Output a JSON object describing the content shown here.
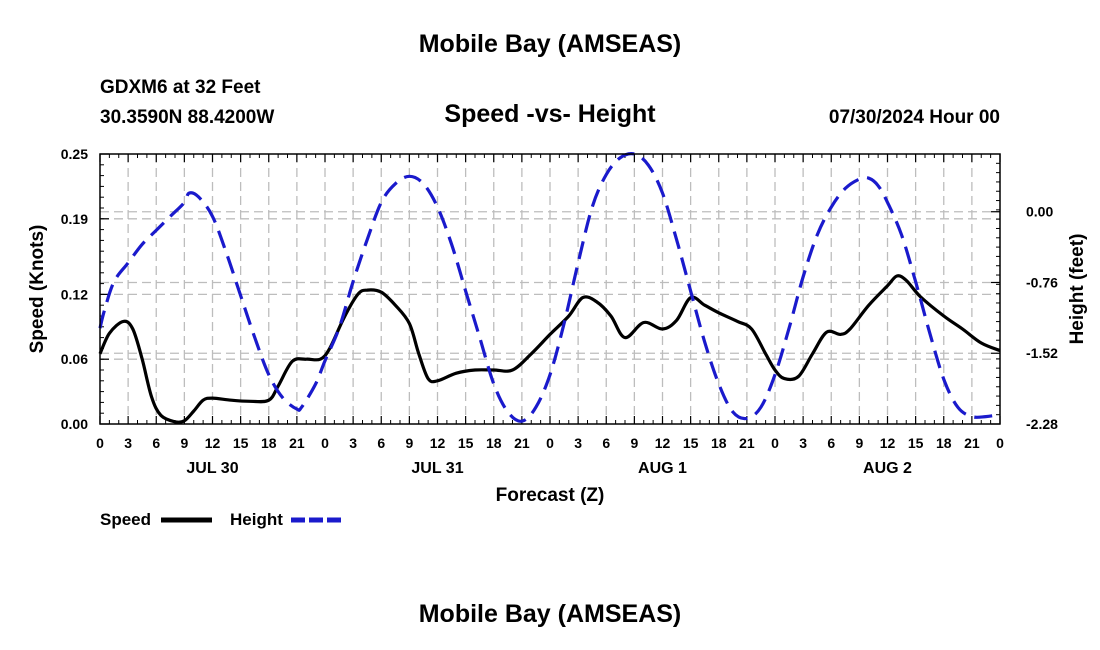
{
  "header": {
    "title": "Mobile Bay (AMSEAS)",
    "station": "GDXM6 at 32 Feet",
    "coords": "30.3590N  88.4200W",
    "chart_title": "Speed -vs- Height",
    "date": "07/30/2024 Hour 00"
  },
  "footer": {
    "title": "Mobile Bay (AMSEAS)"
  },
  "colors": {
    "speed": "#000000",
    "height": "#1a1acc",
    "grid": "#bdbdbd"
  },
  "chart_data": {
    "type": "line",
    "title": "Speed -vs- Height",
    "xlabel": "Forecast (Z)",
    "ylabel": "Speed (Knots)",
    "y2label": "Height (feet)",
    "xlim": [
      0,
      96
    ],
    "ylim": [
      0,
      0.25
    ],
    "y2lim": [
      -2.28,
      0.62
    ],
    "x_ticks": [
      0,
      3,
      6,
      9,
      12,
      15,
      18,
      21,
      24,
      27,
      30,
      33,
      36,
      39,
      42,
      45,
      48,
      51,
      54,
      57,
      60,
      63,
      66,
      69,
      72,
      75,
      78,
      81,
      84,
      87,
      90,
      93,
      96
    ],
    "x_tick_labels": [
      "0",
      "3",
      "6",
      "9",
      "12",
      "15",
      "18",
      "21",
      "0",
      "3",
      "6",
      "9",
      "12",
      "15",
      "18",
      "21",
      "0",
      "3",
      "6",
      "9",
      "12",
      "15",
      "18",
      "21",
      "0",
      "3",
      "6",
      "9",
      "12",
      "15",
      "18",
      "21",
      "0"
    ],
    "day_labels": [
      {
        "x": 12,
        "label": "JUL 30"
      },
      {
        "x": 36,
        "label": "JUL 31"
      },
      {
        "x": 60,
        "label": "AUG 1"
      },
      {
        "x": 84,
        "label": "AUG 2"
      }
    ],
    "y_ticks": [
      0.0,
      0.06,
      0.12,
      0.19,
      0.25
    ],
    "y_tick_labels": [
      "0.00",
      "0.06",
      "0.12",
      "0.19",
      "0.25"
    ],
    "y2_ticks": [
      0.0,
      -0.76,
      -1.52,
      -2.28
    ],
    "y2_tick_labels": [
      "0.00",
      "-0.76",
      "-1.52",
      "-2.28"
    ],
    "legend": {
      "position": "bottom-left",
      "speed_label": "Speed",
      "height_label": "Height"
    },
    "series": [
      {
        "name": "Speed",
        "axis": "left",
        "style": "solid",
        "points": [
          [
            0,
            0.065
          ],
          [
            1,
            0.084
          ],
          [
            2.5,
            0.095
          ],
          [
            3.5,
            0.088
          ],
          [
            4.5,
            0.06
          ],
          [
            5.5,
            0.025
          ],
          [
            6.5,
            0.008
          ],
          [
            8,
            0.002
          ],
          [
            9,
            0.003
          ],
          [
            10,
            0.012
          ],
          [
            11,
            0.022
          ],
          [
            12,
            0.024
          ],
          [
            14,
            0.022
          ],
          [
            16,
            0.021
          ],
          [
            18,
            0.022
          ],
          [
            19,
            0.035
          ],
          [
            20.5,
            0.058
          ],
          [
            22,
            0.06
          ],
          [
            23.5,
            0.06
          ],
          [
            24.5,
            0.07
          ],
          [
            26,
            0.098
          ],
          [
            27.5,
            0.12
          ],
          [
            28.5,
            0.124
          ],
          [
            30,
            0.122
          ],
          [
            31.5,
            0.11
          ],
          [
            33,
            0.093
          ],
          [
            34,
            0.065
          ],
          [
            35,
            0.042
          ],
          [
            36,
            0.04
          ],
          [
            38,
            0.047
          ],
          [
            40,
            0.05
          ],
          [
            42,
            0.05
          ],
          [
            44,
            0.05
          ],
          [
            46,
            0.065
          ],
          [
            48,
            0.083
          ],
          [
            50,
            0.1
          ],
          [
            51.5,
            0.117
          ],
          [
            53,
            0.113
          ],
          [
            54.5,
            0.1
          ],
          [
            56,
            0.08
          ],
          [
            58,
            0.094
          ],
          [
            60,
            0.088
          ],
          [
            61.5,
            0.096
          ],
          [
            63,
            0.117
          ],
          [
            64.5,
            0.11
          ],
          [
            66,
            0.103
          ],
          [
            68,
            0.095
          ],
          [
            69.5,
            0.088
          ],
          [
            71,
            0.065
          ],
          [
            72,
            0.05
          ],
          [
            73,
            0.042
          ],
          [
            74.5,
            0.044
          ],
          [
            76,
            0.065
          ],
          [
            77.5,
            0.085
          ],
          [
            79,
            0.083
          ],
          [
            80,
            0.088
          ],
          [
            82,
            0.11
          ],
          [
            84,
            0.128
          ],
          [
            85,
            0.137
          ],
          [
            86,
            0.133
          ],
          [
            87.5,
            0.118
          ],
          [
            90,
            0.1
          ],
          [
            92,
            0.088
          ],
          [
            94,
            0.075
          ],
          [
            96,
            0.068
          ]
        ]
      },
      {
        "name": "Height",
        "axis": "right",
        "style": "dashed",
        "points": [
          [
            0,
            -1.25
          ],
          [
            0.5,
            -1.05
          ],
          [
            1.5,
            -0.75
          ],
          [
            3,
            -0.55
          ],
          [
            4.5,
            -0.35
          ],
          [
            6,
            -0.2
          ],
          [
            7.5,
            -0.05
          ],
          [
            9,
            0.1
          ],
          [
            9.5,
            0.2
          ],
          [
            10.5,
            0.16
          ],
          [
            12,
            -0.05
          ],
          [
            13.5,
            -0.45
          ],
          [
            15,
            -0.9
          ],
          [
            16.5,
            -1.35
          ],
          [
            18,
            -1.75
          ],
          [
            19.5,
            -2.0
          ],
          [
            21,
            -2.12
          ],
          [
            21.5,
            -2.1
          ],
          [
            23,
            -1.85
          ],
          [
            24,
            -1.6
          ],
          [
            25.5,
            -1.25
          ],
          [
            27,
            -0.75
          ],
          [
            28.5,
            -0.3
          ],
          [
            30,
            0.1
          ],
          [
            31.5,
            0.3
          ],
          [
            33,
            0.38
          ],
          [
            34.5,
            0.3
          ],
          [
            36,
            0.05
          ],
          [
            37.5,
            -0.35
          ],
          [
            39,
            -0.85
          ],
          [
            40.5,
            -1.35
          ],
          [
            42,
            -1.85
          ],
          [
            43.5,
            -2.15
          ],
          [
            45,
            -2.25
          ],
          [
            46.5,
            -2.1
          ],
          [
            48,
            -1.75
          ],
          [
            49.5,
            -1.2
          ],
          [
            51,
            -0.55
          ],
          [
            52.5,
            0.05
          ],
          [
            54,
            0.4
          ],
          [
            55.5,
            0.58
          ],
          [
            57,
            0.62
          ],
          [
            58.5,
            0.5
          ],
          [
            60,
            0.2
          ],
          [
            61.5,
            -0.3
          ],
          [
            63,
            -0.85
          ],
          [
            64.5,
            -1.4
          ],
          [
            66,
            -1.85
          ],
          [
            67.5,
            -2.15
          ],
          [
            69,
            -2.22
          ],
          [
            70.5,
            -2.1
          ],
          [
            72,
            -1.75
          ],
          [
            73.5,
            -1.25
          ],
          [
            75,
            -0.7
          ],
          [
            76.5,
            -0.25
          ],
          [
            78,
            0.05
          ],
          [
            79.5,
            0.25
          ],
          [
            81,
            0.35
          ],
          [
            82,
            0.36
          ],
          [
            83,
            0.28
          ],
          [
            84,
            0.1
          ],
          [
            85.5,
            -0.25
          ],
          [
            87,
            -0.75
          ],
          [
            88.5,
            -1.3
          ],
          [
            90,
            -1.8
          ],
          [
            91.5,
            -2.1
          ],
          [
            93,
            -2.2
          ],
          [
            94.5,
            -2.2
          ],
          [
            96,
            -2.18
          ]
        ]
      }
    ]
  }
}
